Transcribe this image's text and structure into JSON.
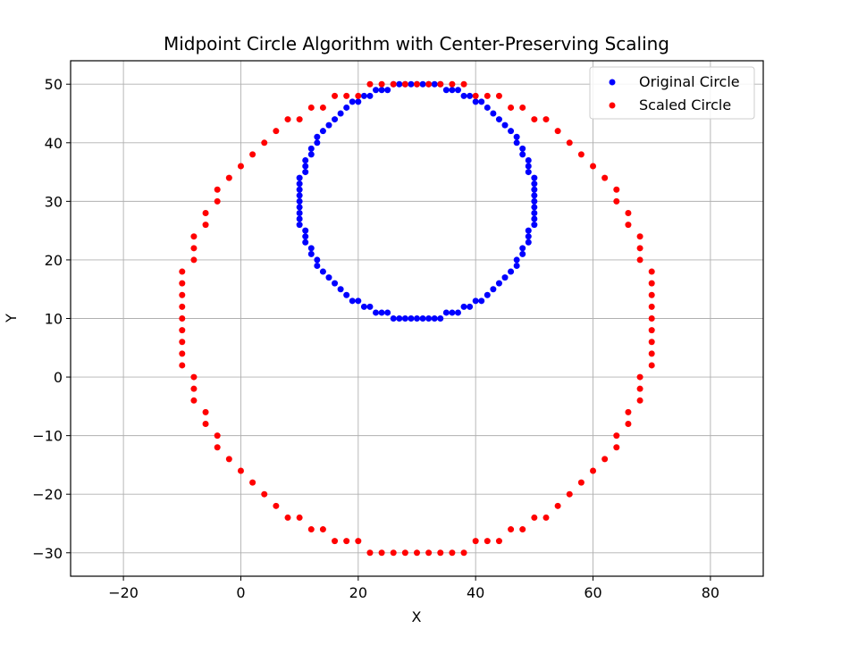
{
  "chart_data": {
    "type": "scatter",
    "title": "Midpoint Circle Algorithm with Center-Preserving Scaling",
    "xlabel": "X",
    "ylabel": "Y",
    "xlim": [
      -29,
      89
    ],
    "ylim": [
      -34,
      54
    ],
    "xticks": [
      -20,
      0,
      20,
      40,
      60,
      80
    ],
    "yticks": [
      -30,
      -20,
      -10,
      0,
      10,
      20,
      30,
      40,
      50
    ],
    "grid": true,
    "legend_position": "upper right",
    "series": [
      {
        "name": "Original Circle",
        "color": "#0000ff",
        "center": [
          30,
          30
        ],
        "radius": 20
      },
      {
        "name": "Scaled Circle",
        "color": "#ff0000",
        "center": [
          30,
          10
        ],
        "radius": 40,
        "step": 2
      }
    ]
  }
}
